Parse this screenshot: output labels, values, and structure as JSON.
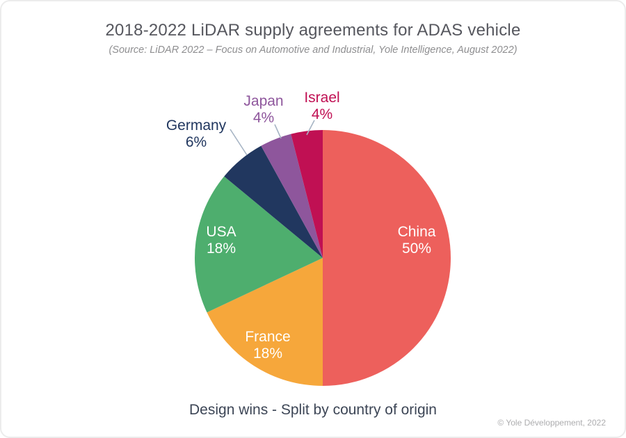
{
  "header": {
    "title": "2018-2022 LiDAR supply agreements for ADAS vehicle",
    "subtitle": "(Source:  LiDAR 2022 – Focus on Automotive and Industrial, Yole Intelligence, August 2022)"
  },
  "chart_data": {
    "type": "pie",
    "title": "2018-2022 LiDAR supply agreements for ADAS vehicle",
    "caption": "Design wins - Split by country of origin",
    "unit": "%",
    "start_angle": "12 o'clock",
    "direction": "clockwise",
    "legend_position": "labels-on-slices",
    "slices": [
      {
        "label": "China",
        "value": 50,
        "display": "50%",
        "color": "#ED605C",
        "label_position": "inside"
      },
      {
        "label": "France",
        "value": 18,
        "display": "18%",
        "color": "#F6A73B",
        "label_position": "inside"
      },
      {
        "label": "USA",
        "value": 18,
        "display": "18%",
        "color": "#4EAE6E",
        "label_position": "inside"
      },
      {
        "label": "Germany",
        "value": 6,
        "display": "6%",
        "color": "#21375F",
        "label_position": "outside"
      },
      {
        "label": "Japan",
        "value": 4,
        "display": "4%",
        "color": "#8E569C",
        "label_position": "outside"
      },
      {
        "label": "Israel",
        "value": 4,
        "display": "4%",
        "color": "#C01053",
        "label_position": "outside"
      }
    ],
    "colors": {
      "leader_line": "#A6B4C4",
      "inside_label_text": "#FFFFFF"
    }
  },
  "footer": {
    "caption": "Design wins - Split by country of origin",
    "copyright": "© Yole Développement, 2022"
  }
}
